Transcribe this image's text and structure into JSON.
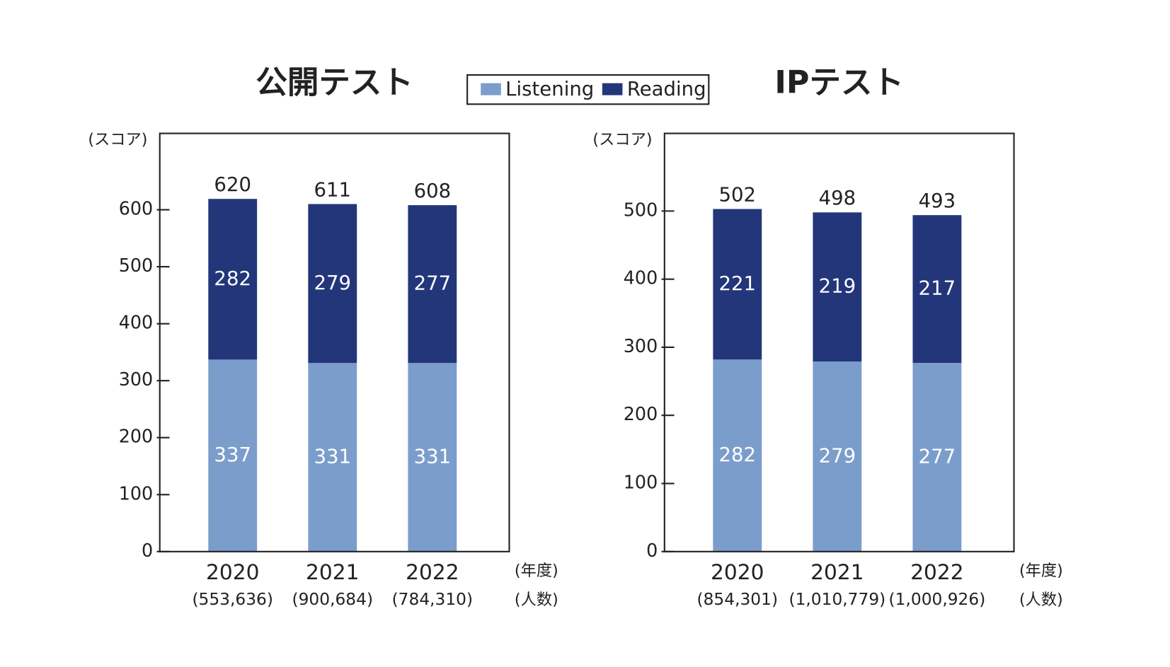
{
  "chart_data": [
    {
      "type": "stacked-bar",
      "title": "公開テスト",
      "y_label": "(スコア)",
      "x_unit": "(年度)",
      "count_unit": "(人数)",
      "categories": [
        "2020",
        "2021",
        "2022"
      ],
      "counts": [
        "(553,636)",
        "(900,684)",
        "(784,310)"
      ],
      "series": [
        {
          "name": "Listening",
          "color": "#7b9dcb",
          "values": [
            337,
            331,
            331
          ]
        },
        {
          "name": "Reading",
          "color": "#23367a",
          "values": [
            282,
            279,
            277
          ]
        }
      ],
      "totals": [
        620,
        611,
        608
      ],
      "ylim": [
        0,
        734
      ],
      "yticks": [
        0,
        100,
        200,
        300,
        400,
        500,
        600
      ]
    },
    {
      "type": "stacked-bar",
      "title": "IPテスト",
      "y_label": "(スコア)",
      "x_unit": "(年度)",
      "count_unit": "(人数)",
      "categories": [
        "2020",
        "2021",
        "2022"
      ],
      "counts": [
        "(854,301)",
        "(1,010,779)",
        "(1,000,926)"
      ],
      "series": [
        {
          "color": "#7b9dcb",
          "values": [
            282,
            279,
            277
          ]
        },
        {
          "color": "#23367a",
          "values": [
            221,
            219,
            217
          ]
        }
      ],
      "totals": [
        502,
        498,
        493
      ],
      "ylim": [
        0,
        614
      ],
      "yticks": [
        0,
        100,
        200,
        300,
        400,
        500
      ]
    }
  ]
}
